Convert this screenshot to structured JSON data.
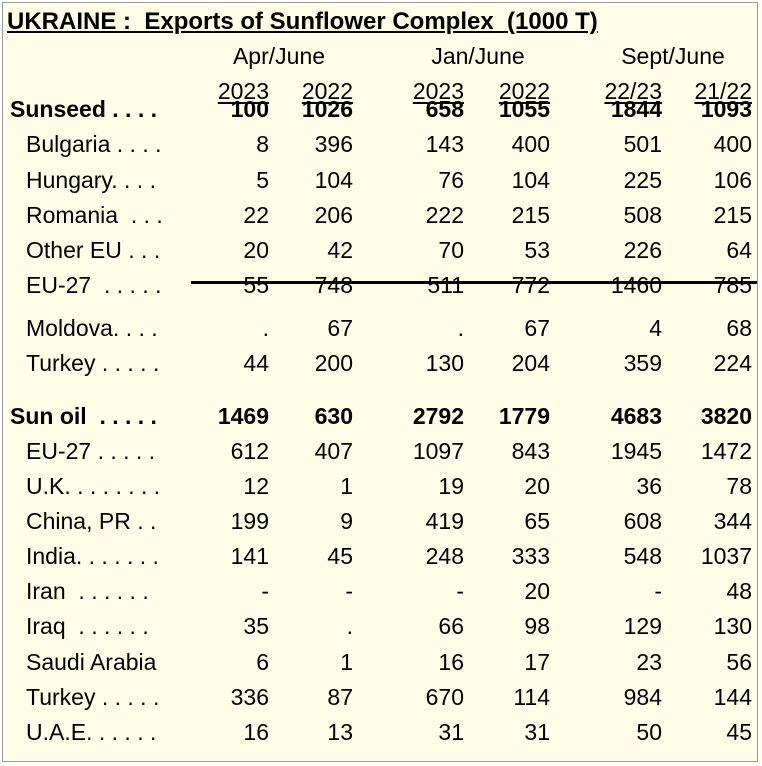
{
  "title": "UKRAINE :  Exports of Sunflower Complex  (1000 T)",
  "periods": [
    "Apr/June",
    "Jan/June",
    "Sept/June"
  ],
  "years": [
    "2023",
    "2022",
    "2023",
    "2022",
    "22/23",
    "21/22"
  ],
  "rows": [
    {
      "label": "Sunseed . . . .",
      "type": "head",
      "values": [
        "100",
        "1026",
        "658",
        "1055",
        "1844",
        "1093"
      ]
    },
    {
      "label": "Bulgaria . . . .",
      "type": "sub",
      "values": [
        "8",
        "396",
        "143",
        "400",
        "501",
        "400"
      ]
    },
    {
      "label": "Hungary. . . .",
      "type": "sub",
      "values": [
        "5",
        "104",
        "76",
        "104",
        "225",
        "106"
      ]
    },
    {
      "label": "Romania  . . .",
      "type": "sub",
      "values": [
        "22",
        "206",
        "222",
        "215",
        "508",
        "215"
      ]
    },
    {
      "label": "Other EU . . .",
      "type": "sub",
      "values": [
        "20",
        "42",
        "70",
        "53",
        "226",
        "64"
      ]
    },
    {
      "label": "EU-27  . . . . .",
      "type": "sub",
      "values": [
        "55",
        "748",
        "511",
        "772",
        "1460",
        "785"
      ]
    },
    {
      "label": "Moldova. . . .",
      "type": "sub",
      "values": [
        ".",
        "67",
        ".",
        "67",
        "4",
        "68"
      ]
    },
    {
      "label": "Turkey . . . . .",
      "type": "sub",
      "values": [
        "44",
        "200",
        "130",
        "204",
        "359",
        "224"
      ]
    },
    {
      "label": "Sun oil  . . . . .",
      "type": "head",
      "values": [
        "1469",
        "630",
        "2792",
        "1779",
        "4683",
        "3820"
      ]
    },
    {
      "label": "EU-27 . . . . .",
      "type": "sub",
      "values": [
        "612",
        "407",
        "1097",
        "843",
        "1945",
        "1472"
      ]
    },
    {
      "label": "U.K. . . . . . . .",
      "type": "sub",
      "values": [
        "12",
        "1",
        "19",
        "20",
        "36",
        "78"
      ]
    },
    {
      "label": "China, PR . .",
      "type": "sub",
      "values": [
        "199",
        "9",
        "419",
        "65",
        "608",
        "344"
      ]
    },
    {
      "label": "India. . . . . . .",
      "type": "sub",
      "values": [
        "141",
        "45",
        "248",
        "333",
        "548",
        "1037"
      ]
    },
    {
      "label": "Iran  . . . . . .",
      "type": "sub",
      "values": [
        "-",
        "-",
        "-",
        "20",
        "-",
        "48"
      ]
    },
    {
      "label": "Iraq  . . . . . .",
      "type": "sub",
      "values": [
        "35",
        ".",
        "66",
        "98",
        "129",
        "130"
      ]
    },
    {
      "label": "Saudi Arabia",
      "type": "sub",
      "values": [
        "6",
        "1",
        "16",
        "17",
        "23",
        "56"
      ]
    },
    {
      "label": "Turkey . . . . .",
      "type": "sub",
      "values": [
        "336",
        "87",
        "670",
        "114",
        "984",
        "144"
      ]
    },
    {
      "label": "U.A.E. . . . . .",
      "type": "sub",
      "values": [
        "16",
        "13",
        "31",
        "31",
        "50",
        "45"
      ]
    }
  ]
}
